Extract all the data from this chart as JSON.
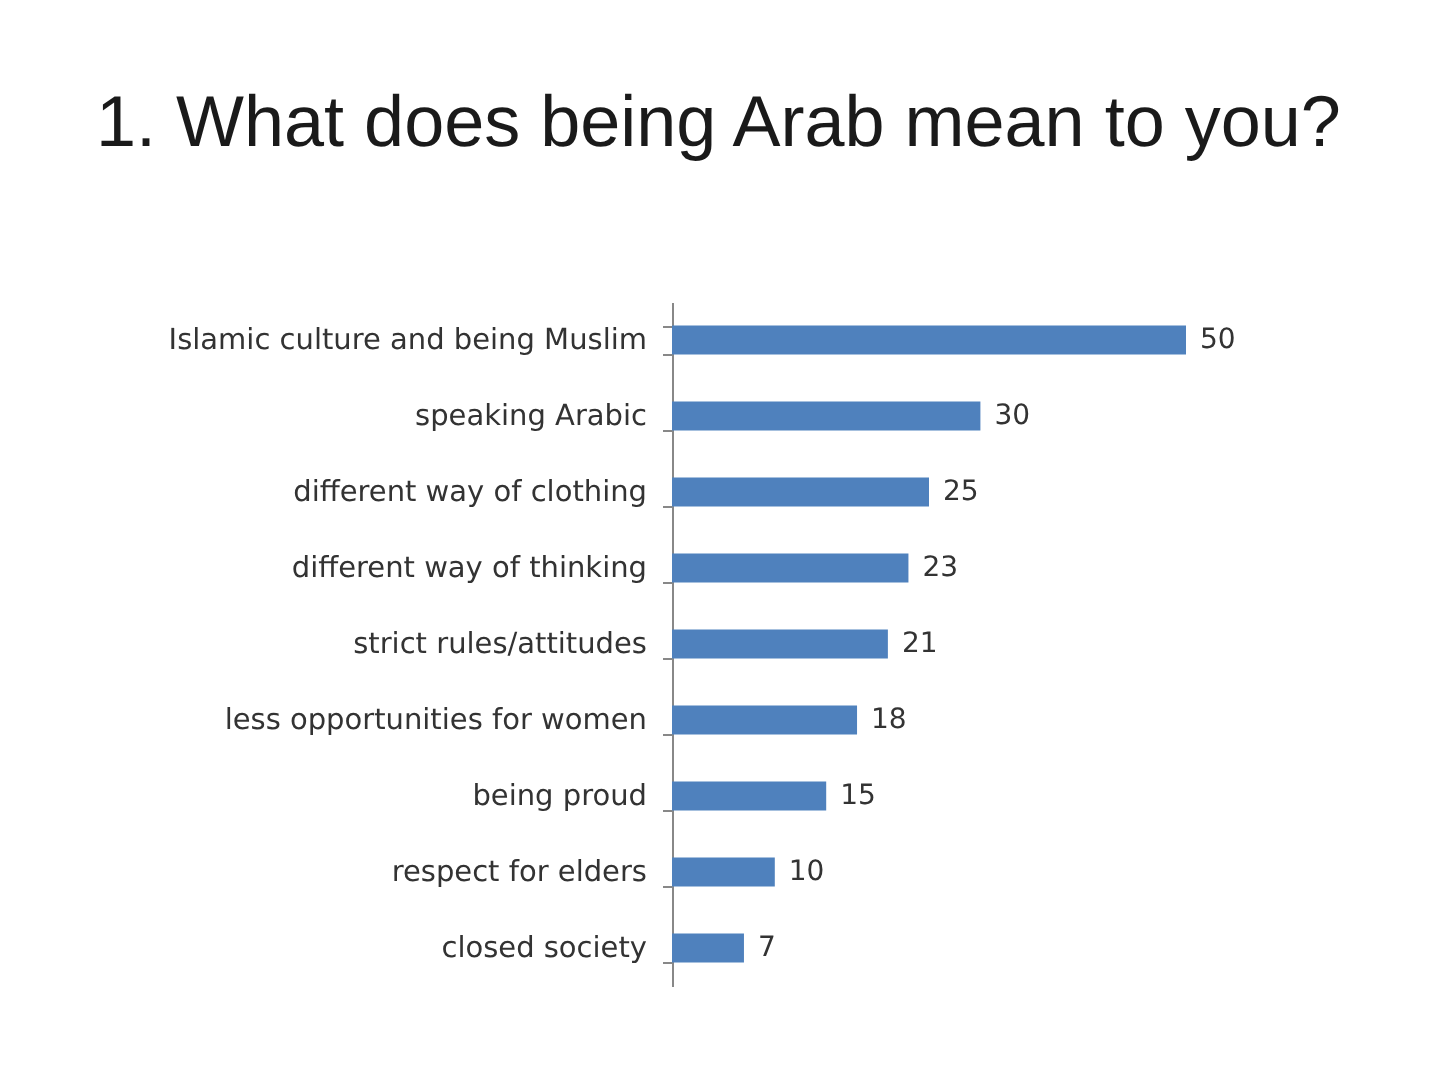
{
  "chart_data": {
    "type": "bar",
    "orientation": "horizontal",
    "title": "1. What does being Arab mean to you?",
    "categories": [
      "Islamic culture and being Muslim",
      "speaking Arabic",
      "different way of clothing",
      "different way of thinking",
      "strict rules/attitudes",
      "less opportunities for women",
      "being proud",
      "respect for elders",
      "closed society"
    ],
    "values": [
      50,
      30,
      25,
      23,
      21,
      18,
      15,
      10,
      7
    ],
    "color": "#4f81bd",
    "data_labels": true
  }
}
